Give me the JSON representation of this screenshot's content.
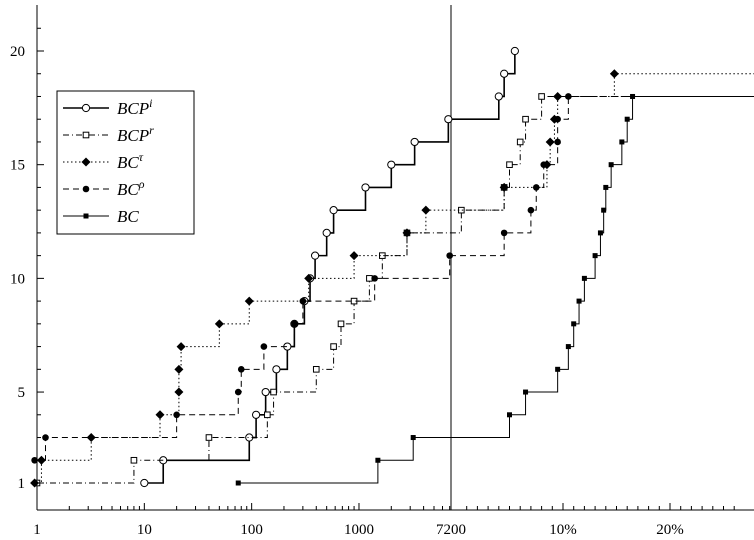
{
  "chart_data": {
    "type": "line",
    "title": "",
    "xlabel": "",
    "ylabel": "",
    "x_scale": "log (time), then percent gap beyond time limit 7200",
    "x_tick_labels": [
      "1",
      "10",
      "100",
      "1000",
      "7200",
      "10%",
      "20%"
    ],
    "x_tick_values": [
      1,
      10,
      100,
      1000,
      7200,
      "10%",
      "20%"
    ],
    "y_tick_labels": [
      "1",
      "5",
      "10",
      "15",
      "20"
    ],
    "y_tick_values": [
      1,
      5,
      10,
      15,
      20
    ],
    "ylim": [
      0.5,
      21.5
    ],
    "vertical_line_at": "7200",
    "legend": {
      "placement": "left"
    },
    "series": [
      {
        "name": "BCP",
        "sup": "i",
        "style": "solid",
        "marker": "circle-open",
        "points": [
          [
            10,
            1
          ],
          [
            15,
            2
          ],
          [
            95,
            3
          ],
          [
            110,
            4
          ],
          [
            135,
            5
          ],
          [
            170,
            6
          ],
          [
            215,
            7
          ],
          [
            250,
            8
          ],
          [
            310,
            9
          ],
          [
            350,
            10
          ],
          [
            390,
            11
          ],
          [
            500,
            12
          ],
          [
            580,
            13
          ],
          [
            1150,
            14
          ],
          [
            2000,
            15
          ],
          [
            3300,
            16
          ],
          [
            6800,
            17
          ],
          [
            "4%",
            18
          ],
          [
            "4.5%",
            19
          ],
          [
            "5.5%",
            20
          ]
        ]
      },
      {
        "name": "BCP",
        "sup": "r",
        "style": "dashdot",
        "marker": "square-open",
        "points": [
          [
            1,
            1
          ],
          [
            8,
            2
          ],
          [
            40,
            3
          ],
          [
            140,
            4
          ],
          [
            160,
            5
          ],
          [
            400,
            6
          ],
          [
            580,
            7
          ],
          [
            680,
            8
          ],
          [
            900,
            9
          ],
          [
            1250,
            10
          ],
          [
            1650,
            11
          ],
          [
            2800,
            12
          ],
          [
            "0.5%",
            13
          ],
          [
            "4.5%",
            14
          ],
          [
            "5%",
            15
          ],
          [
            "6%",
            16
          ],
          [
            "6.5%",
            17
          ],
          [
            "8%",
            18
          ]
        ]
      },
      {
        "name": "BC",
        "sup": "τ",
        "style": "dotted",
        "marker": "diamond",
        "points": [
          [
            0.95,
            1
          ],
          [
            1.1,
            2
          ],
          [
            3.2,
            3
          ],
          [
            14,
            4
          ],
          [
            21,
            5
          ],
          [
            21,
            6
          ],
          [
            22,
            7
          ],
          [
            50,
            8
          ],
          [
            95,
            9
          ],
          [
            340,
            10
          ],
          [
            900,
            11
          ],
          [
            2800,
            12
          ],
          [
            4200,
            13
          ],
          [
            "4.5%",
            14
          ],
          [
            "8.5%",
            15
          ],
          [
            "8.8%",
            16
          ],
          [
            "9.2%",
            17
          ],
          [
            "9.5%",
            18
          ],
          [
            "14.8%",
            19
          ]
        ]
      },
      {
        "name": "BC",
        "sup": "ρ",
        "style": "dashed",
        "marker": "circle-filled",
        "points": [
          [
            0.95,
            2
          ],
          [
            1.2,
            3
          ],
          [
            20,
            4
          ],
          [
            75,
            5
          ],
          [
            80,
            6
          ],
          [
            130,
            7
          ],
          [
            250,
            8
          ],
          [
            300,
            9
          ],
          [
            1400,
            10
          ],
          [
            7000,
            11
          ],
          [
            "4.5%",
            12
          ],
          [
            "7%",
            13
          ],
          [
            "7.5%",
            14
          ],
          [
            "8.2%",
            15
          ],
          [
            "9.5%",
            16
          ],
          [
            "9.5%",
            17
          ],
          [
            "10.5%",
            18
          ]
        ]
      },
      {
        "name": "BC",
        "sup": "",
        "style": "solid",
        "marker": "square-filled",
        "points": [
          [
            75,
            1
          ],
          [
            1500,
            2
          ],
          [
            3200,
            3
          ],
          [
            "5%",
            4
          ],
          [
            "6.5%",
            5
          ],
          [
            "9.5%",
            6
          ],
          [
            "10.5%",
            7
          ],
          [
            "11%",
            8
          ],
          [
            "11.5%",
            9
          ],
          [
            "12%",
            10
          ],
          [
            "13%",
            11
          ],
          [
            "13.5%",
            12
          ],
          [
            "13.8%",
            13
          ],
          [
            "14%",
            14
          ],
          [
            "14.5%",
            15
          ],
          [
            "15.5%",
            16
          ],
          [
            "16%",
            17
          ],
          [
            "16.5%",
            18
          ]
        ]
      }
    ]
  }
}
